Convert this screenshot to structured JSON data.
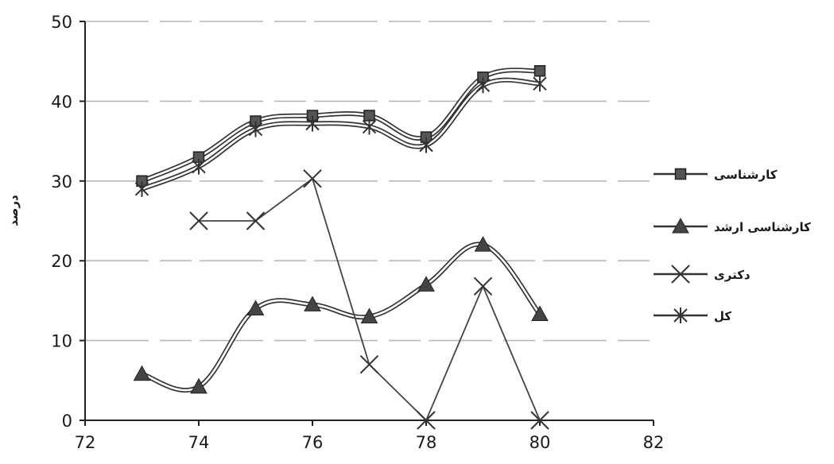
{
  "chart_data": {
    "type": "line",
    "title": "",
    "xlabel": "",
    "ylabel": "درصد",
    "xlim": [
      72,
      82
    ],
    "ylim": [
      0,
      50
    ],
    "x_ticks": [
      "72",
      "74",
      "76",
      "78",
      "80",
      "82"
    ],
    "y_ticks": [
      "0",
      "10",
      "20",
      "30",
      "40",
      "50"
    ],
    "grid": "horizontal",
    "legend_position": "right",
    "series": [
      {
        "name": "کارشناسی",
        "marker": "square",
        "color": "#333333",
        "points": [
          [
            73,
            30
          ],
          [
            74,
            33
          ],
          [
            75,
            37.5
          ],
          [
            76,
            38.2
          ],
          [
            77,
            38.2
          ],
          [
            78,
            35.5
          ],
          [
            79,
            43
          ],
          [
            80,
            43.8
          ]
        ]
      },
      {
        "name": "کارشناسی ارشد",
        "marker": "triangle",
        "color": "#333333",
        "points": [
          [
            73,
            5.8
          ],
          [
            74,
            4.2
          ],
          [
            75,
            14
          ],
          [
            76,
            14.5
          ],
          [
            77,
            13
          ],
          [
            78,
            17
          ],
          [
            79,
            22
          ],
          [
            80,
            13.3
          ]
        ]
      },
      {
        "name": "دکتری",
        "marker": "x",
        "color": "#333333",
        "points": [
          [
            74,
            25
          ],
          [
            75,
            25
          ],
          [
            76,
            30.3
          ],
          [
            77,
            7
          ],
          [
            78,
            0
          ],
          [
            79,
            16.8
          ],
          [
            80,
            0
          ]
        ]
      },
      {
        "name": "کل",
        "marker": "asterisk",
        "color": "#333333",
        "points": [
          [
            73,
            29
          ],
          [
            74,
            31.8
          ],
          [
            75,
            36.5
          ],
          [
            76,
            37.2
          ],
          [
            77,
            36.8
          ],
          [
            78,
            34.5
          ],
          [
            79,
            42
          ],
          [
            80,
            42.2
          ]
        ]
      }
    ]
  }
}
